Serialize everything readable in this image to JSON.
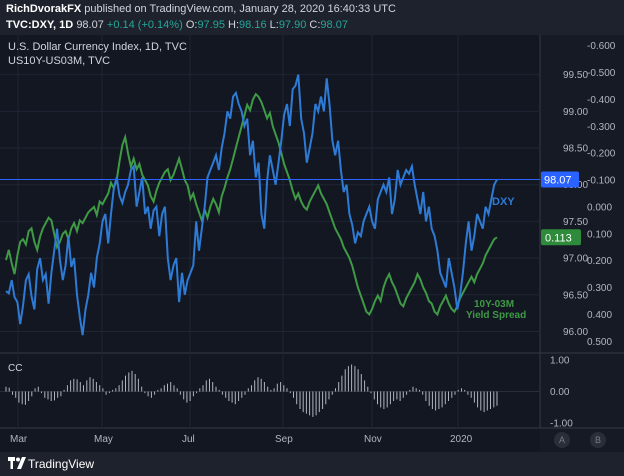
{
  "header": {
    "author": "RichDvorakFX",
    "published_text": "published on TradingView.com, January 28, 2020 16:40:33 UTC",
    "symbol": "TVC:DXY, 1D",
    "last": "98.07",
    "change": "+0.14 (+0.14%)",
    "open_label": "O:",
    "open": "97.95",
    "high_label": "H:",
    "high": "98.16",
    "low_label": "L:",
    "low": "97.90",
    "close_label": "C:",
    "close": "98.07"
  },
  "legend": {
    "main": "U.S. Dollar Currency Index, 1D, TVC",
    "secondary": "US10Y-US03M, TVC"
  },
  "footer": {
    "brand": "TradingView",
    "btn_a": "A",
    "btn_b": "B"
  },
  "colors": {
    "dxy": "#2e7bd6",
    "spread": "#3f9a45",
    "cc": "#b2b5be",
    "bg": "#131722",
    "grid": "#1f2533",
    "axis_text": "#b2b5be",
    "dxy_label": "#2962ff",
    "spread_label": "#2e8b3b"
  },
  "chart_data": [
    {
      "type": "line",
      "title": "U.S. Dollar Currency Index, 1D, TVC",
      "x_tick_labels": [
        "Mar",
        "May",
        "Jul",
        "Sep",
        "Nov",
        "2020"
      ],
      "y_left_ticks": [
        -0.6,
        -0.5,
        -0.4,
        -0.3,
        -0.2,
        -0.1,
        0.0,
        0.1,
        0.2,
        0.3,
        0.4,
        0.5
      ],
      "y_left_tick_labels": [
        "-0.600",
        "-0.500",
        "-0.400",
        "-0.300",
        "-0.200",
        "-0.100",
        "0.000",
        "0.100",
        "0.200",
        "0.300",
        "0.400",
        "0.500"
      ],
      "y_right_ticks": [
        99.5,
        99.0,
        98.5,
        98.0,
        97.5,
        97.0,
        96.5,
        96.0
      ],
      "y_right_tick_labels": [
        "99.50",
        "99.00",
        "98.50",
        "98.00",
        "97.50",
        "97.00",
        "96.50",
        "96.00"
      ],
      "ylim_dxy": [
        95.72,
        100.04
      ],
      "ylim_spread_inverted": [
        -0.64,
        0.54
      ],
      "series": [
        {
          "name": "DXY",
          "axis": "right",
          "label_text": "DXY",
          "last_value_label": "98.07",
          "values": [
            96.55,
            96.52,
            96.7,
            96.47,
            96.4,
            96.1,
            96.35,
            96.7,
            96.78,
            96.48,
            96.3,
            96.85,
            97.0,
            96.7,
            96.78,
            96.38,
            96.8,
            97.1,
            97.4,
            96.98,
            96.7,
            96.9,
            97.3,
            96.88,
            97.0,
            96.5,
            96.2,
            95.95,
            96.3,
            96.5,
            96.8,
            96.6,
            97.0,
            97.2,
            97.5,
            97.6,
            97.2,
            97.6,
            97.95,
            98.1,
            97.85,
            97.75,
            97.9,
            98.0,
            98.2,
            98.25,
            97.7,
            97.9,
            98.1,
            97.6,
            97.7,
            97.4,
            97.65,
            97.7,
            97.3,
            97.6,
            97.7,
            97.0,
            96.7,
            96.9,
            97.0,
            96.4,
            96.8,
            96.5,
            96.7,
            96.8,
            96.9,
            97.5,
            97.1,
            97.4,
            97.7,
            98.1,
            98.2,
            98.3,
            98.4,
            98.2,
            98.5,
            98.7,
            99.0,
            98.9,
            99.2,
            99.25,
            99.1,
            99.0,
            98.8,
            98.9,
            98.4,
            98.6,
            98.1,
            98.3,
            97.6,
            97.4,
            98.05,
            98.4,
            98.2,
            98.0,
            98.3,
            98.6,
            98.95,
            99.1,
            98.8,
            99.3,
            99.35,
            99.5,
            98.9,
            98.7,
            98.3,
            98.5,
            98.7,
            99.1,
            99.0,
            99.2,
            99.0,
            99.45,
            99.1,
            98.6,
            98.4,
            98.6,
            98.2,
            97.9,
            98.0,
            97.6,
            97.45,
            97.2,
            97.35,
            97.3,
            97.5,
            97.6,
            97.7,
            97.5,
            97.4,
            97.8,
            97.9,
            98.0,
            97.9,
            98.1,
            97.6,
            97.8,
            98.2,
            98.0,
            98.1,
            98.2,
            98.15,
            98.25,
            98.0,
            97.8,
            97.6,
            97.9,
            97.5,
            97.7,
            97.4,
            97.3,
            97.1,
            96.8,
            96.7,
            96.6,
            97.0,
            96.8,
            96.6,
            96.3,
            96.5,
            96.8,
            97.2,
            97.5,
            97.1,
            97.3,
            97.6,
            97.5,
            97.4,
            97.7,
            97.6,
            97.8,
            98.0,
            98.07
          ]
        },
        {
          "name": "US10Y-US03M",
          "axis": "left-inverted",
          "label_text": "10Y-03M",
          "label_text_2": "Yield Spread",
          "last_value_label": "0.113",
          "values": [
            0.198,
            0.16,
            0.21,
            0.25,
            0.18,
            0.13,
            0.12,
            0.14,
            0.09,
            0.08,
            0.13,
            0.16,
            0.11,
            0.08,
            0.06,
            0.04,
            0.05,
            0.1,
            0.15,
            0.13,
            0.1,
            0.09,
            0.12,
            0.08,
            0.06,
            0.09,
            0.05,
            0.06,
            0.04,
            0.02,
            0.01,
            0.0,
            0.03,
            -0.02,
            -0.01,
            -0.03,
            -0.05,
            -0.09,
            -0.07,
            -0.1,
            -0.17,
            -0.23,
            -0.26,
            -0.2,
            -0.15,
            -0.18,
            -0.14,
            -0.16,
            -0.12,
            -0.1,
            -0.08,
            -0.04,
            -0.02,
            -0.06,
            -0.09,
            -0.11,
            -0.13,
            -0.14,
            -0.1,
            -0.12,
            -0.15,
            -0.18,
            -0.14,
            -0.1,
            -0.08,
            -0.03,
            -0.05,
            -0.01,
            0.02,
            0.05,
            0.01,
            0.04,
            0.0,
            -0.03,
            -0.01,
            0.02,
            -0.04,
            -0.07,
            -0.11,
            -0.14,
            -0.18,
            -0.22,
            -0.26,
            -0.3,
            -0.34,
            -0.38,
            -0.36,
            -0.4,
            -0.42,
            -0.41,
            -0.39,
            -0.36,
            -0.33,
            -0.35,
            -0.3,
            -0.27,
            -0.24,
            -0.2,
            -0.16,
            -0.13,
            -0.1,
            -0.06,
            -0.03,
            -0.05,
            -0.02,
            0.0,
            0.01,
            -0.02,
            -0.04,
            -0.06,
            -0.08,
            -0.05,
            -0.03,
            -0.01,
            0.02,
            0.05,
            0.08,
            0.1,
            0.12,
            0.15,
            0.17,
            0.19,
            0.22,
            0.26,
            0.3,
            0.33,
            0.36,
            0.39,
            0.4,
            0.38,
            0.35,
            0.33,
            0.35,
            0.3,
            0.27,
            0.25,
            0.28,
            0.3,
            0.33,
            0.36,
            0.37,
            0.34,
            0.32,
            0.3,
            0.28,
            0.25,
            0.27,
            0.3,
            0.32,
            0.35,
            0.36,
            0.39,
            0.4,
            0.37,
            0.35,
            0.33,
            0.36,
            0.38,
            0.39,
            0.37,
            0.34,
            0.32,
            0.3,
            0.28,
            0.26,
            0.28,
            0.25,
            0.23,
            0.21,
            0.18,
            0.16,
            0.14,
            0.12,
            0.113
          ]
        }
      ],
      "horizontal_line": 98.07
    },
    {
      "type": "bar",
      "title": "CC",
      "y_ticks": [
        1.0,
        0.0,
        -1.0
      ],
      "y_tick_labels": [
        "1.00",
        "0.00",
        "-1.00"
      ],
      "ylim": [
        -1.15,
        1.15
      ],
      "series": [
        {
          "name": "CC",
          "values": [
            0.15,
            0.12,
            -0.1,
            -0.2,
            -0.35,
            -0.4,
            -0.42,
            -0.3,
            -0.15,
            0.1,
            0.15,
            -0.05,
            -0.2,
            -0.25,
            -0.3,
            -0.28,
            -0.2,
            -0.15,
            0.05,
            0.2,
            0.35,
            0.4,
            0.38,
            0.3,
            0.2,
            0.35,
            0.45,
            0.4,
            0.3,
            0.2,
            0.1,
            -0.1,
            -0.05,
            0.05,
            0.1,
            0.2,
            0.35,
            0.5,
            0.6,
            0.65,
            0.55,
            0.4,
            0.15,
            -0.05,
            -0.15,
            -0.2,
            -0.1,
            0.05,
            0.1,
            0.2,
            0.25,
            0.3,
            0.2,
            0.1,
            -0.1,
            -0.25,
            -0.35,
            -0.3,
            -0.15,
            -0.05,
            0.1,
            0.2,
            0.35,
            0.4,
            0.3,
            0.15,
            0.05,
            -0.1,
            -0.2,
            -0.3,
            -0.35,
            -0.4,
            -0.3,
            -0.2,
            -0.1,
            0.1,
            0.2,
            0.35,
            0.45,
            0.4,
            0.3,
            0.15,
            0.05,
            0.1,
            0.25,
            0.3,
            0.2,
            0.1,
            -0.05,
            -0.2,
            -0.4,
            -0.55,
            -0.65,
            -0.7,
            -0.75,
            -0.8,
            -0.75,
            -0.65,
            -0.55,
            -0.4,
            -0.25,
            -0.1,
            0.1,
            0.3,
            0.5,
            0.7,
            0.8,
            0.85,
            0.8,
            0.7,
            0.55,
            0.35,
            0.15,
            -0.05,
            -0.25,
            -0.4,
            -0.5,
            -0.55,
            -0.5,
            -0.4,
            -0.3,
            -0.25,
            -0.3,
            -0.2,
            -0.1,
            0.05,
            0.15,
            0.1,
            0.05,
            -0.1,
            -0.3,
            -0.45,
            -0.55,
            -0.6,
            -0.55,
            -0.5,
            -0.4,
            -0.3,
            -0.2,
            -0.1,
            0.05,
            0.1,
            0.05,
            -0.1,
            -0.2,
            -0.35,
            -0.5,
            -0.6,
            -0.65,
            -0.6,
            -0.55,
            -0.5,
            -0.45
          ]
        }
      ]
    }
  ]
}
